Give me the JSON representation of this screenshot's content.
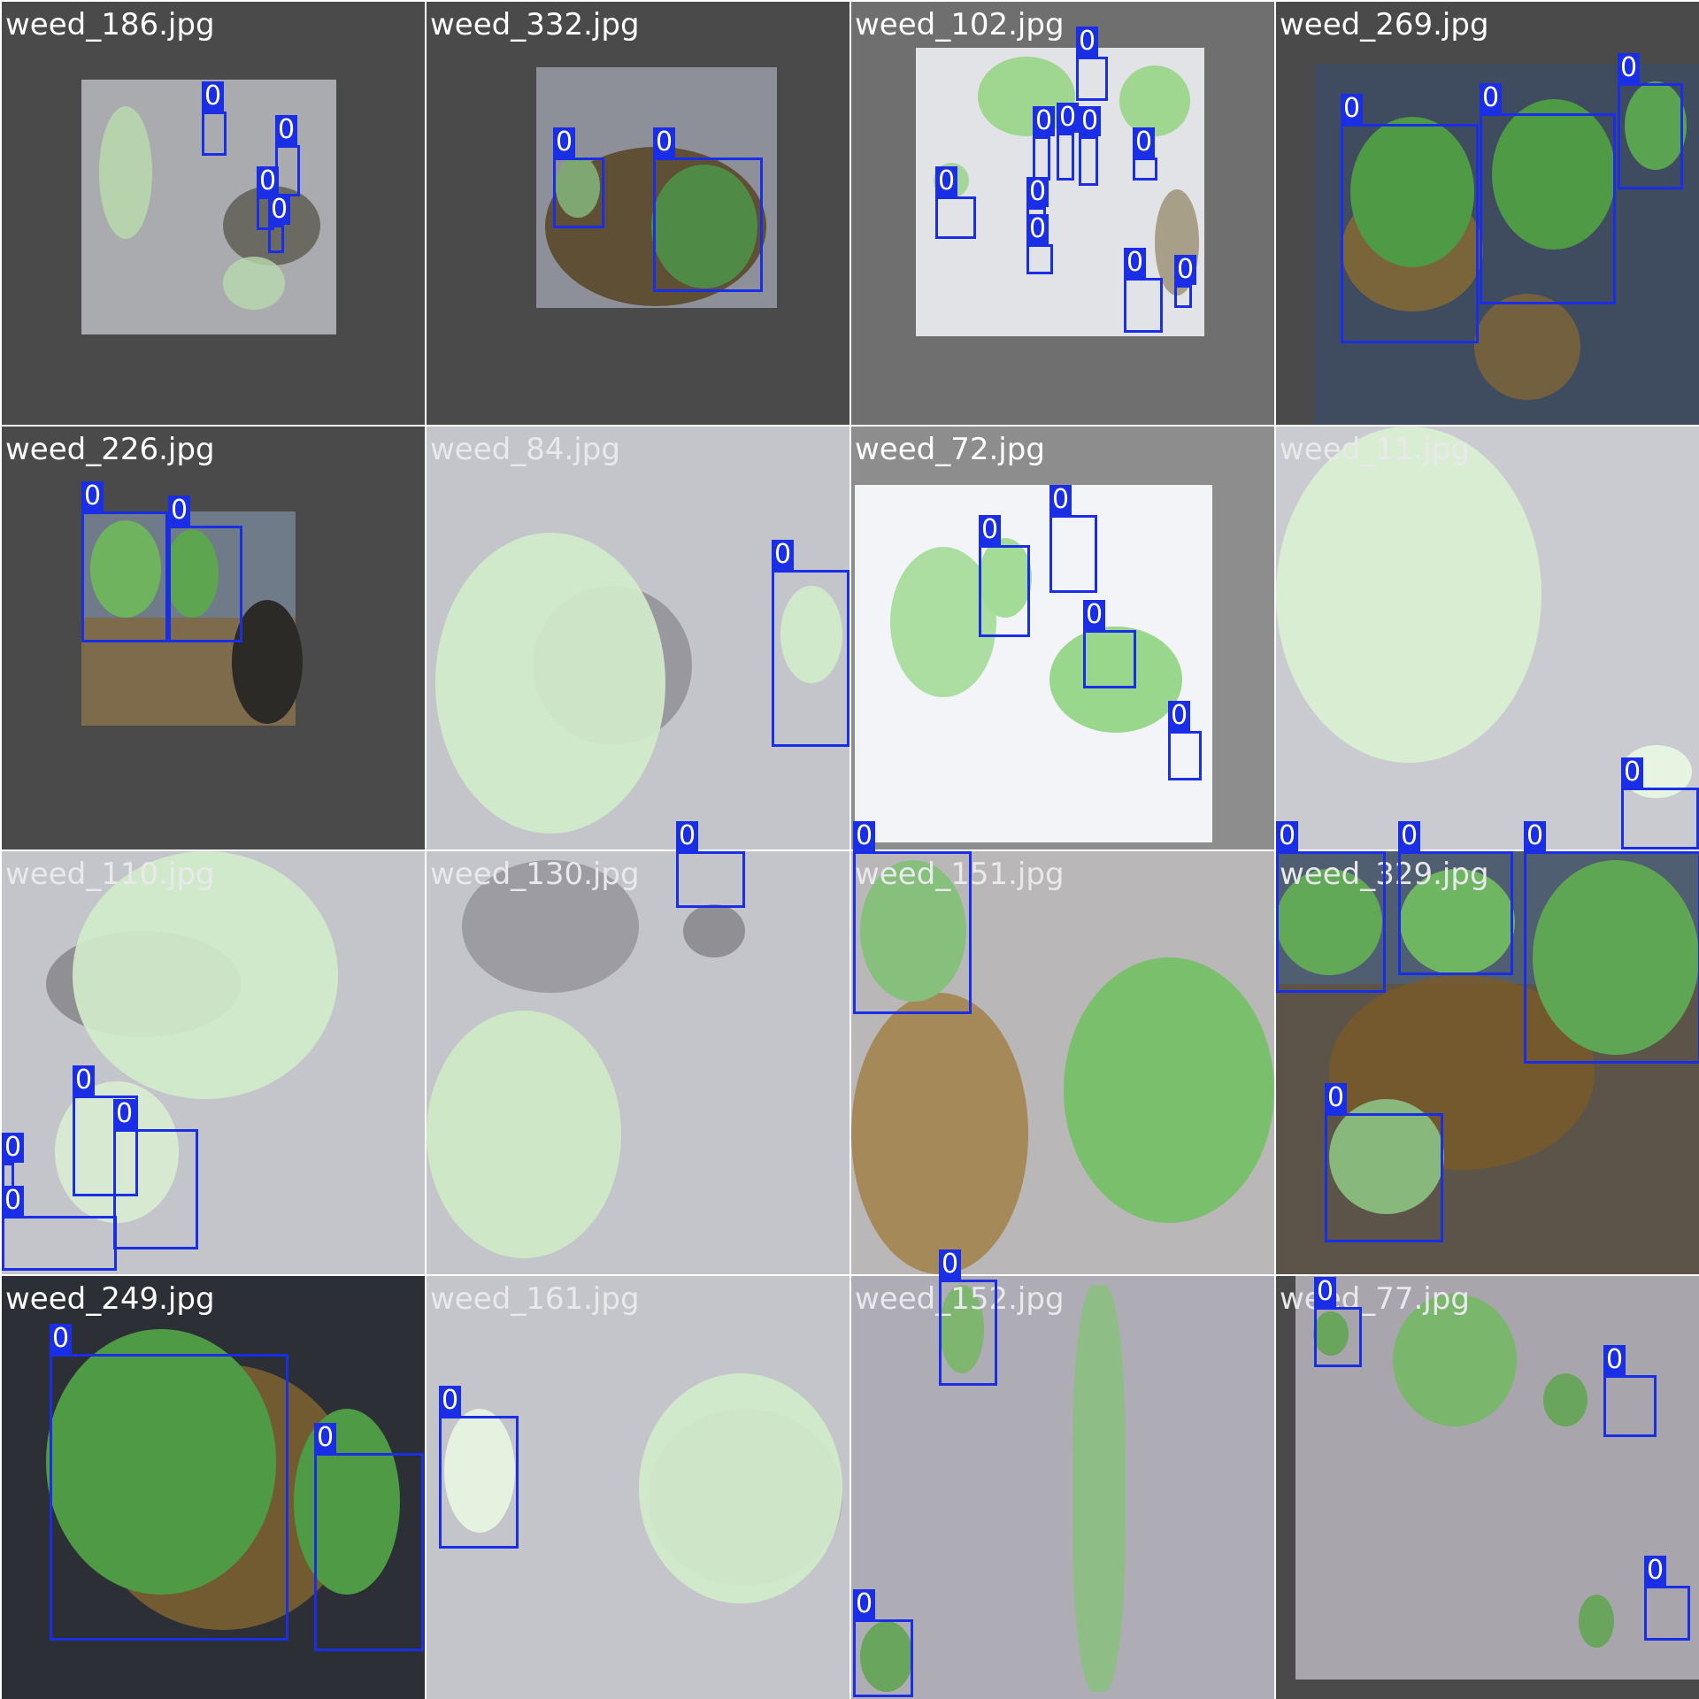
{
  "label_class": "0",
  "colors": {
    "box": "#1a2ee6",
    "filename_text": "#ffffff",
    "padding_dark": "#4a4a4a",
    "padding_mid": "#6f6f6f",
    "water_light": "#c9cbd2",
    "water_dark": "#3c4858",
    "soil_brown": "#8a6a30",
    "weed_light": "#c9efc4",
    "weed_dark": "#3f8f3a"
  },
  "tiles": [
    {
      "file": "weed_186.jpg",
      "pad": "dark",
      "scene": "light"
    },
    {
      "file": "weed_332.jpg",
      "pad": "dark",
      "scene": "dark"
    },
    {
      "file": "weed_102.jpg",
      "pad": "mid",
      "scene": "bright"
    },
    {
      "file": "weed_269.jpg",
      "pad": "dark",
      "scene": "dark"
    },
    {
      "file": "weed_226.jpg",
      "pad": "dark",
      "scene": "brown"
    },
    {
      "file": "weed_84.jpg",
      "pad": "none",
      "scene": "light"
    },
    {
      "file": "weed_72.jpg",
      "pad": "mid",
      "scene": "bright"
    },
    {
      "file": "weed_11.jpg",
      "pad": "none",
      "scene": "light"
    },
    {
      "file": "weed_110.jpg",
      "pad": "none",
      "scene": "light"
    },
    {
      "file": "weed_130.jpg",
      "pad": "none",
      "scene": "light"
    },
    {
      "file": "weed_151.jpg",
      "pad": "none",
      "scene": "brown"
    },
    {
      "file": "weed_329.jpg",
      "pad": "none",
      "scene": "dark"
    },
    {
      "file": "weed_249.jpg",
      "pad": "none",
      "scene": "dark"
    },
    {
      "file": "weed_161.jpg",
      "pad": "none",
      "scene": "light"
    },
    {
      "file": "weed_152.jpg",
      "pad": "none",
      "scene": "light"
    },
    {
      "file": "weed_77.jpg",
      "pad": "dark",
      "scene": "light"
    }
  ]
}
